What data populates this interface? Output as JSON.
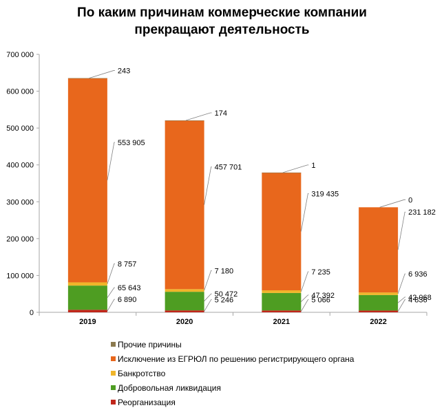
{
  "title_lines": [
    "По каким причинам коммерческие компании",
    "прекращают деятельность"
  ],
  "chart_data": {
    "type": "bar",
    "stacked": true,
    "title": "По каким причинам коммерческие компании прекращают деятельность",
    "categories": [
      "2019",
      "2020",
      "2021",
      "2022"
    ],
    "ylim": [
      0,
      700000
    ],
    "yticks": [
      0,
      100000,
      200000,
      300000,
      400000,
      500000,
      600000,
      700000
    ],
    "ytick_labels": [
      "0",
      "100 000",
      "200 000",
      "300 000",
      "400 000",
      "500 000",
      "600 000",
      "700 000"
    ],
    "grid": false,
    "legend_position": "bottom",
    "series": [
      {
        "name": "Реорганизация",
        "color": "#c0271b",
        "values": [
          6890,
          5246,
          5066,
          4836
        ],
        "labels": [
          "6 890",
          "5 246",
          "5 066",
          "4 836"
        ]
      },
      {
        "name": "Добровольная ликвидация",
        "color": "#4e9d22",
        "values": [
          65643,
          50472,
          47392,
          42068
        ],
        "labels": [
          "65 643",
          "50 472",
          "47 392",
          "42 068"
        ]
      },
      {
        "name": "Банкротство",
        "color": "#f0b52a",
        "values": [
          8757,
          7180,
          7235,
          6936
        ],
        "labels": [
          "8 757",
          "7 180",
          "7 235",
          "6 936"
        ]
      },
      {
        "name": "Исключение из ЕГРЮЛ по решению регистрирующего органа",
        "color": "#e8671c",
        "values": [
          553905,
          457701,
          319435,
          231182
        ],
        "labels": [
          "553 905",
          "457 701",
          "319 435",
          "231 182"
        ]
      },
      {
        "name": "Прочие причины",
        "color": "#8b7a4f",
        "values": [
          243,
          174,
          1,
          0
        ],
        "labels": [
          "243",
          "174",
          "1",
          "0"
        ]
      }
    ]
  },
  "legend_order": [
    4,
    3,
    2,
    1,
    0
  ]
}
